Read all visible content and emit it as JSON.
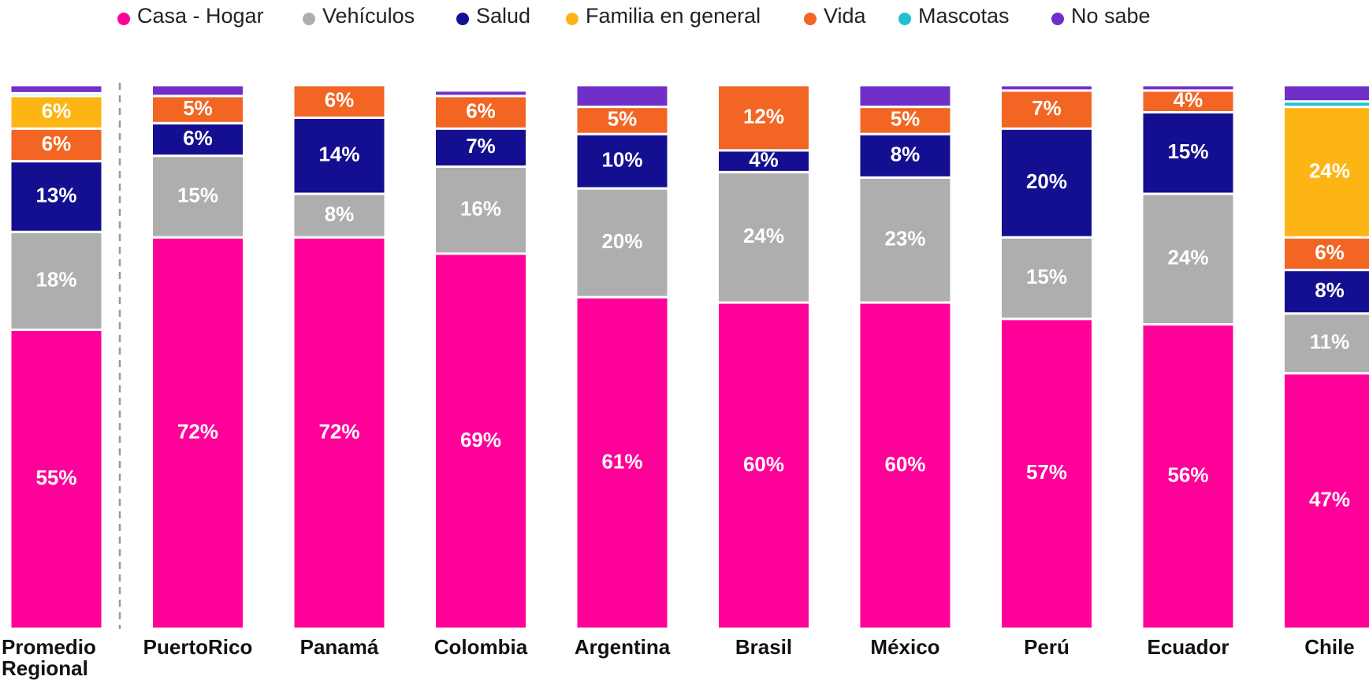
{
  "chart_data": {
    "type": "stacked_bar",
    "categories": [
      "Promedio Regional",
      "PuertoRico",
      "Panamá",
      "Colombia",
      "Argentina",
      "Brasil",
      "México",
      "Perú",
      "Ecuador",
      "Chile"
    ],
    "ylim": [
      0,
      100
    ],
    "legend": "top",
    "series": [
      {
        "name": "Casa - Hogar",
        "color": "#ff0099",
        "values": [
          55,
          72,
          72,
          69,
          61,
          60,
          60,
          57,
          56,
          47
        ],
        "value_labels": [
          "55%",
          "72%",
          "72%",
          "69%",
          "61%",
          "60%",
          "60%",
          "57%",
          "56%",
          "47%"
        ]
      },
      {
        "name": "Vehículos",
        "color": "#aeaeae",
        "values": [
          18,
          15,
          8,
          16,
          20,
          24,
          23,
          15,
          24,
          11
        ],
        "value_labels": [
          "18%",
          "15%",
          "8%",
          "16%",
          "20%",
          "24%",
          "23%",
          "15%",
          "24%",
          "11%"
        ]
      },
      {
        "name": "Salud",
        "color": "#140f91",
        "values": [
          13,
          6,
          14,
          7,
          10,
          4,
          8,
          20,
          15,
          8
        ],
        "value_labels": [
          "13%",
          "6%",
          "14%",
          "7%",
          "10%",
          "4%",
          "8%",
          "20%",
          "15%",
          "8%"
        ]
      },
      {
        "name": "Familia en general",
        "color": "#fdb515",
        "values": [
          6,
          0,
          0,
          0,
          0,
          0,
          0,
          0,
          0,
          24
        ],
        "value_labels": [
          "6%",
          null,
          null,
          null,
          null,
          null,
          null,
          null,
          null,
          "24%"
        ]
      },
      {
        "name": "Vida",
        "color": "#f26522",
        "values": [
          6,
          5,
          6,
          6,
          5,
          12,
          5,
          7,
          4,
          6
        ],
        "value_labels": [
          "6%",
          "5%",
          "6%",
          "6%",
          "5%",
          "12%",
          "5%",
          "7%",
          "4%",
          "6%"
        ]
      },
      {
        "name": "Mascotas",
        "color": "#1fc0d6",
        "values": [
          0.5,
          0,
          0,
          0,
          0,
          0,
          0,
          0,
          0,
          1
        ]
      },
      {
        "name": "No sabe",
        "color": "#7030c8",
        "values": [
          1.5,
          2,
          0,
          1,
          4,
          0,
          4,
          1,
          1,
          3
        ]
      }
    ]
  }
}
